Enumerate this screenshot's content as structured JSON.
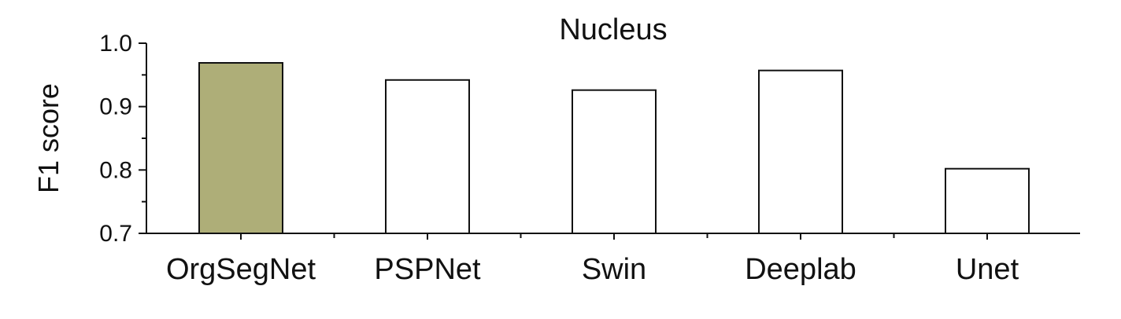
{
  "chart_data": {
    "type": "bar",
    "title": "Nucleus",
    "xlabel": "",
    "ylabel": "F1 score",
    "categories": [
      "OrgSegNet",
      "PSPNet",
      "Swin",
      "Deeplab",
      "Unet"
    ],
    "values": [
      0.969,
      0.942,
      0.926,
      0.957,
      0.802
    ],
    "ylim": [
      0.7,
      1.0
    ],
    "yticks": [
      0.7,
      0.8,
      0.9,
      1.0
    ],
    "ytick_labels": [
      "0.7",
      "0.8",
      "0.9",
      "1.0"
    ],
    "grid": false,
    "legend": "none",
    "colors": {
      "highlight": "#aeae78",
      "default": "#ffffff",
      "stroke": "#111111"
    },
    "highlight_index": 0
  }
}
